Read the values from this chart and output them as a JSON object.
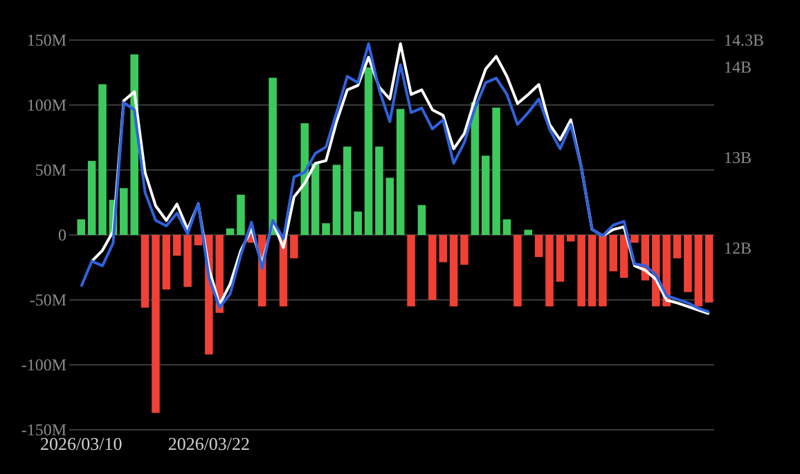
{
  "chart_data": {
    "type": "bar",
    "categories": [
      "2026/03/10",
      null,
      null,
      null,
      null,
      null,
      null,
      null,
      null,
      null,
      null,
      null,
      "2026/03/22",
      null,
      null,
      null,
      null,
      null,
      null,
      null,
      null,
      null,
      null,
      null,
      null,
      null,
      null,
      null,
      null,
      null,
      null,
      null,
      null,
      null,
      null,
      null,
      null,
      null,
      null,
      null,
      null,
      null,
      null,
      null,
      null,
      null,
      null,
      null,
      null,
      null,
      null,
      null,
      null,
      null,
      null,
      null,
      null,
      null,
      null,
      null
    ],
    "series": [
      {
        "values": [
          12,
          57,
          116,
          27,
          36,
          139,
          -56,
          -137,
          -42,
          -16,
          -40,
          -8,
          -92,
          -60,
          5,
          31,
          -6,
          -55,
          121,
          -55,
          -18,
          86,
          55,
          9,
          54,
          68,
          18,
          129,
          68,
          44,
          97,
          -55,
          23,
          -50,
          -21,
          -55,
          -23,
          102,
          61,
          98,
          12,
          -55,
          4,
          -17,
          -55,
          -36,
          -5,
          -55,
          -55,
          -55,
          -28,
          -33,
          -6,
          -35,
          -55,
          -55,
          -18,
          -44,
          -55,
          -52
        ],
        "colors": [
          "#3ec95c",
          "#3ec95c",
          "#3ec95c",
          "#3ec95c",
          "#3ec95c",
          "#3ec95c",
          "#ef4136",
          "#ef4136",
          "#ef4136",
          "#ef4136",
          "#ef4136",
          "#ef4136",
          "#ef4136",
          "#ef4136",
          "#3ec95c",
          "#3ec95c",
          "#ef4136",
          "#ef4136",
          "#3ec95c",
          "#ef4136",
          "#ef4136",
          "#3ec95c",
          "#3ec95c",
          "#3ec95c",
          "#3ec95c",
          "#3ec95c",
          "#3ec95c",
          "#3ec95c",
          "#3ec95c",
          "#3ec95c",
          "#3ec95c",
          "#ef4136",
          "#3ec95c",
          "#ef4136",
          "#ef4136",
          "#ef4136",
          "#ef4136",
          "#3ec95c",
          "#3ec95c",
          "#3ec95c",
          "#3ec95c",
          "#ef4136",
          "#3ec95c",
          "#ef4136",
          "#ef4136",
          "#ef4136",
          "#ef4136",
          "#ef4136",
          "#ef4136",
          "#ef4136",
          "#ef4136",
          "#ef4136",
          "#ef4136",
          "#ef4136",
          "#ef4136",
          "#ef4136",
          "#ef4136",
          "#ef4136",
          "#ef4136",
          "#ef4136"
        ]
      },
      {
        "type": "line",
        "axis": "y2",
        "color": "#ffffff",
        "values": [
          null,
          11.86,
          11.98,
          12.19,
          13.63,
          13.73,
          12.84,
          12.47,
          12.31,
          12.49,
          12.21,
          12.49,
          11.78,
          11.38,
          11.61,
          11.98,
          12.21,
          11.83,
          12.29,
          12.01,
          12.57,
          12.72,
          12.94,
          12.97,
          13.4,
          13.75,
          13.8,
          14.11,
          13.78,
          13.65,
          14.26,
          13.7,
          13.75,
          13.53,
          13.47,
          13.1,
          13.27,
          13.65,
          13.98,
          14.12,
          13.9,
          13.6,
          13.7,
          13.81,
          13.37,
          13.2,
          13.42,
          12.89,
          12.21,
          12.14,
          12.21,
          12.24,
          11.81,
          11.76,
          11.66,
          11.43,
          11.4,
          11.36,
          11.32,
          11.28
        ]
      },
      {
        "type": "line",
        "axis": "y2",
        "color": "#2f62dc",
        "values": [
          11.58,
          11.86,
          11.81,
          12.06,
          13.61,
          13.53,
          12.62,
          12.31,
          12.25,
          12.39,
          12.16,
          12.5,
          11.68,
          11.35,
          11.5,
          11.93,
          12.29,
          11.78,
          12.31,
          12.11,
          12.79,
          12.84,
          13.05,
          13.12,
          13.5,
          13.9,
          13.83,
          14.26,
          13.75,
          13.4,
          14.03,
          13.5,
          13.55,
          13.32,
          13.42,
          12.94,
          13.17,
          13.55,
          13.83,
          13.88,
          13.7,
          13.37,
          13.5,
          13.65,
          13.32,
          13.1,
          13.37,
          12.89,
          12.21,
          12.14,
          12.26,
          12.3,
          11.83,
          11.81,
          11.71,
          11.48,
          11.44,
          11.4,
          11.34,
          11.3
        ]
      }
    ],
    "ylim": [
      -150,
      150
    ],
    "yticks": [
      {
        "value": -150,
        "label": "-150M"
      },
      {
        "value": -100,
        "label": "-100M"
      },
      {
        "value": -50,
        "label": "-50M"
      },
      0,
      {
        "value": 50,
        "label": "50M"
      },
      {
        "value": 100,
        "label": "100M"
      },
      {
        "value": 150,
        "label": "150M"
      }
    ],
    "y2lim": [
      10,
      14.3
    ],
    "y2ticks": [
      {
        "value": 12,
        "label": "12B"
      },
      {
        "value": 13,
        "label": "13B"
      },
      {
        "value": 14,
        "label": "14B"
      },
      {
        "value": 14.3,
        "label": "14.3B"
      }
    ],
    "grid": "y"
  }
}
